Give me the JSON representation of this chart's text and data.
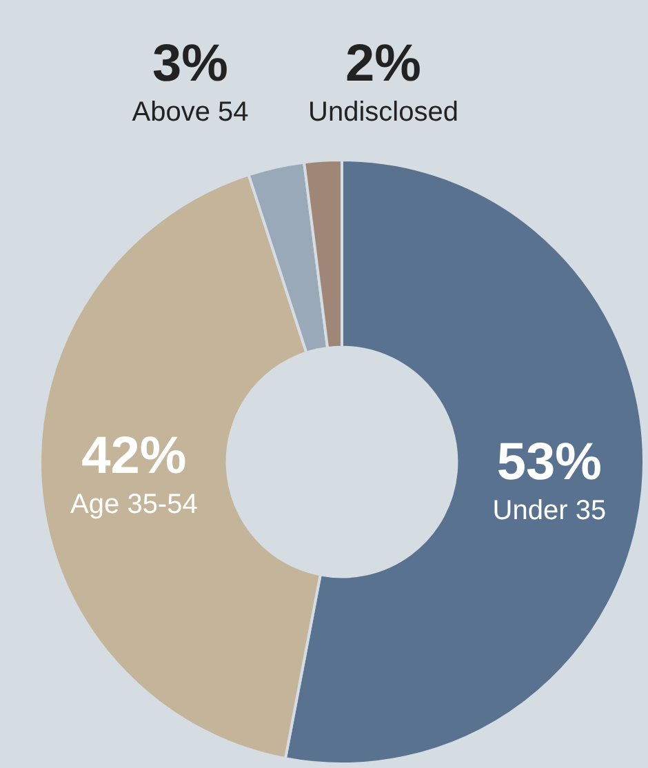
{
  "chart_data": {
    "type": "donut",
    "categories": [
      "Under 35",
      "Age 35-54",
      "Above 54",
      "Undisclosed"
    ],
    "values": [
      53,
      42,
      3,
      2
    ],
    "colors": [
      "#587290",
      "#c4b49a",
      "#99a9b8",
      "#a08677"
    ],
    "value_labels": [
      "53%",
      "42%",
      "3%",
      "2%"
    ],
    "legend": false
  }
}
